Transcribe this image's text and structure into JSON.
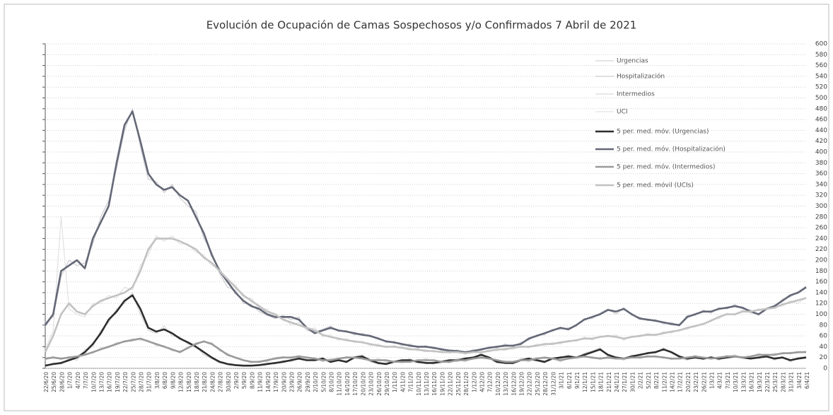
{
  "chart_data": {
    "type": "line",
    "title": "Evolución de Ocupación de Camas Sospechosos y/o Confirmados  7 Abril de 2021",
    "categories": [
      "22/6/20",
      "25/6/20",
      "28/6/20",
      "1/7/20",
      "4/7/20",
      "7/7/20",
      "10/7/20",
      "13/7/20",
      "16/7/20",
      "19/7/20",
      "22/7/20",
      "25/7/20",
      "28/7/20",
      "31/7/20",
      "3/8/20",
      "6/8/20",
      "9/8/20",
      "12/8/20",
      "15/8/20",
      "18/8/20",
      "21/8/20",
      "24/8/20",
      "27/8/20",
      "30/8/20",
      "2/9/20",
      "5/9/20",
      "8/9/20",
      "11/9/20",
      "14/9/20",
      "17/9/20",
      "20/9/20",
      "23/9/20",
      "26/9/20",
      "29/9/20",
      "2/10/20",
      "5/10/20",
      "8/10/20",
      "11/10/20",
      "14/10/20",
      "17/10/20",
      "20/10/20",
      "23/10/20",
      "26/10/20",
      "29/10/20",
      "1/11/20",
      "4/11/20",
      "7/11/20",
      "10/11/20",
      "13/11/20",
      "16/11/20",
      "19/11/20",
      "22/11/20",
      "25/11/20",
      "28/11/20",
      "1/12/20",
      "4/12/20",
      "7/12/20",
      "10/12/20",
      "13/12/20",
      "16/12/20",
      "19/12/20",
      "22/12/20",
      "25/12/20",
      "28/12/20",
      "31/12/20",
      "3/1/21",
      "6/1/21",
      "9/1/21",
      "12/1/21",
      "15/1/21",
      "18/1/21",
      "21/1/21",
      "24/1/21",
      "27/1/21",
      "30/1/21",
      "2/2/21",
      "5/2/21",
      "8/2/21",
      "11/2/21",
      "14/2/21",
      "17/2/21",
      "20/2/21",
      "23/2/21",
      "26/2/21",
      "1/3/21",
      "4/3/21",
      "7/3/21",
      "10/3/21",
      "13/3/21",
      "16/3/21",
      "19/3/21",
      "22/3/21",
      "25/3/21",
      "28/3/21",
      "31/3/21",
      "3/4/21",
      "6/4/21"
    ],
    "series": [
      {
        "name": "Urgencias",
        "color": "#d4d4d4",
        "values": [
          3,
          10,
          8,
          18,
          15,
          35,
          40,
          70,
          85,
          110,
          120,
          140,
          100,
          70,
          65,
          78,
          60,
          58,
          45,
          42,
          25,
          18,
          10,
          8,
          5,
          4,
          6,
          5,
          10,
          8,
          15,
          12,
          20,
          14,
          16,
          20,
          10,
          18,
          10,
          22,
          25,
          12,
          8,
          10,
          14,
          12,
          18,
          10,
          12,
          8,
          14,
          16,
          12,
          20,
          18,
          28,
          18,
          10,
          12,
          8,
          18,
          16,
          14,
          10,
          20,
          18,
          25,
          18,
          28,
          32,
          38,
          22,
          20,
          15,
          25,
          22,
          30,
          28,
          38,
          28,
          20,
          15,
          22,
          16,
          22,
          15,
          22,
          25,
          18,
          20,
          18,
          25,
          15,
          22,
          12,
          20,
          22
        ]
      },
      {
        "name": "Hospitalización",
        "color": "#cdcdd2",
        "values": [
          85,
          95,
          170,
          200,
          190,
          195,
          230,
          280,
          310,
          370,
          440,
          480,
          410,
          350,
          345,
          325,
          340,
          315,
          300,
          290,
          240,
          215,
          175,
          150,
          145,
          120,
          118,
          105,
          98,
          92,
          98,
          90,
          95,
          70,
          68,
          72,
          78,
          68,
          70,
          62,
          65,
          58,
          57,
          48,
          50,
          42,
          45,
          38,
          42,
          36,
          37,
          30,
          34,
          28,
          35,
          33,
          40,
          38,
          45,
          40,
          48,
          52,
          62,
          62,
          72,
          72,
          75,
          78,
          92,
          92,
          102,
          110,
          100,
          112,
          98,
          95,
          88,
          90,
          82,
          85,
          78,
          98,
          98,
          108,
          102,
          112,
          110,
          118,
          110,
          108,
          98,
          112,
          112,
          128,
          132,
          142,
          152
        ]
      },
      {
        "name": "Intermedios",
        "color": "#dadada",
        "values": [
          15,
          22,
          16,
          22,
          20,
          28,
          28,
          38,
          38,
          48,
          48,
          55,
          52,
          52,
          42,
          42,
          32,
          32,
          36,
          48,
          48,
          48,
          32,
          28,
          18,
          16,
          10,
          14,
          12,
          20,
          22,
          18,
          24,
          18,
          20,
          12,
          18,
          16,
          22,
          18,
          20,
          12,
          18,
          12,
          14,
          10,
          14,
          12,
          18,
          12,
          14,
          10,
          18,
          12,
          20,
          18,
          20,
          12,
          14,
          10,
          18,
          12,
          20,
          18,
          20,
          12,
          20,
          18,
          24,
          18,
          20,
          18,
          20,
          16,
          22,
          18,
          24,
          20,
          22,
          16,
          20,
          18,
          24,
          18,
          20,
          18,
          24,
          20,
          22,
          20,
          28,
          22,
          28,
          26,
          30,
          28,
          32
        ]
      },
      {
        "name": "UCI",
        "color": "#e2e2e2",
        "values": [
          35,
          70,
          280,
          110,
          100,
          95,
          120,
          120,
          135,
          130,
          150,
          145,
          190,
          210,
          245,
          235,
          245,
          230,
          230,
          215,
          210,
          190,
          185,
          160,
          155,
          130,
          130,
          110,
          110,
          95,
          95,
          80,
          85,
          70,
          75,
          58,
          62,
          52,
          55,
          48,
          50,
          42,
          45,
          38,
          42,
          38,
          38,
          32,
          35,
          30,
          33,
          28,
          32,
          26,
          32,
          28,
          35,
          32,
          38,
          35,
          42,
          38,
          45,
          42,
          48,
          45,
          52,
          50,
          58,
          52,
          60,
          58,
          62,
          52,
          60,
          58,
          65,
          60,
          68,
          65,
          72,
          72,
          80,
          80,
          90,
          92,
          102,
          98,
          108,
          102,
          110,
          108,
          115,
          115,
          125,
          120,
          132
        ]
      },
      {
        "name": "5 per. med. móv. (Urgencias)",
        "color": "#2e2e2e",
        "values": [
          5,
          8,
          10,
          15,
          20,
          30,
          45,
          65,
          90,
          105,
          125,
          135,
          110,
          75,
          68,
          72,
          65,
          55,
          48,
          40,
          30,
          20,
          12,
          8,
          6,
          5,
          5,
          6,
          8,
          10,
          12,
          15,
          18,
          15,
          15,
          18,
          12,
          15,
          12,
          20,
          22,
          15,
          10,
          8,
          12,
          15,
          15,
          12,
          10,
          10,
          12,
          15,
          15,
          18,
          20,
          25,
          20,
          12,
          10,
          10,
          15,
          18,
          15,
          12,
          18,
          20,
          22,
          20,
          25,
          30,
          35,
          25,
          20,
          18,
          22,
          25,
          28,
          30,
          35,
          30,
          22,
          18,
          20,
          18,
          20,
          18,
          20,
          22,
          20,
          18,
          20,
          22,
          18,
          20,
          15,
          18,
          20
        ]
      },
      {
        "name": "5 per. med. móv. (Hospitalización)",
        "color": "#646876",
        "values": [
          80,
          100,
          180,
          190,
          200,
          185,
          240,
          270,
          300,
          380,
          450,
          475,
          420,
          360,
          340,
          330,
          335,
          320,
          310,
          280,
          250,
          210,
          180,
          160,
          140,
          125,
          115,
          110,
          100,
          95,
          95,
          95,
          90,
          75,
          65,
          70,
          75,
          70,
          68,
          65,
          62,
          60,
          55,
          50,
          48,
          45,
          42,
          40,
          40,
          38,
          35,
          33,
          32,
          30,
          32,
          35,
          38,
          40,
          42,
          42,
          45,
          55,
          60,
          65,
          70,
          75,
          72,
          80,
          90,
          95,
          100,
          108,
          105,
          110,
          100,
          92,
          90,
          88,
          85,
          82,
          80,
          95,
          100,
          105,
          105,
          110,
          112,
          115,
          112,
          105,
          100,
          110,
          115,
          125,
          135,
          140,
          150
        ]
      },
      {
        "name": "5 per. med. móv. (Intermedios)",
        "color": "#9a9a9a",
        "values": [
          18,
          20,
          18,
          20,
          22,
          25,
          30,
          35,
          40,
          45,
          50,
          52,
          55,
          50,
          45,
          40,
          35,
          30,
          38,
          45,
          50,
          45,
          35,
          25,
          20,
          15,
          12,
          12,
          15,
          18,
          20,
          20,
          22,
          20,
          18,
          15,
          15,
          18,
          20,
          20,
          18,
          15,
          15,
          15,
          12,
          12,
          12,
          15,
          15,
          15,
          12,
          12,
          15,
          15,
          18,
          20,
          18,
          15,
          12,
          12,
          15,
          15,
          18,
          20,
          18,
          15,
          18,
          20,
          22,
          20,
          18,
          20,
          18,
          18,
          20,
          20,
          22,
          22,
          20,
          18,
          18,
          20,
          22,
          20,
          18,
          20,
          22,
          22,
          20,
          22,
          25,
          25,
          25,
          28,
          28,
          30,
          30
        ]
      },
      {
        "name": "5 per. med. móvil (UCIs)",
        "color": "#c2c2c2",
        "values": [
          30,
          60,
          100,
          120,
          105,
          100,
          115,
          125,
          130,
          135,
          140,
          150,
          180,
          220,
          240,
          240,
          240,
          235,
          228,
          220,
          205,
          195,
          180,
          165,
          150,
          135,
          125,
          115,
          105,
          100,
          90,
          85,
          80,
          75,
          70,
          62,
          58,
          55,
          52,
          50,
          48,
          45,
          42,
          40,
          40,
          38,
          35,
          35,
          32,
          32,
          30,
          30,
          30,
          28,
          30,
          30,
          32,
          35,
          35,
          38,
          40,
          40,
          42,
          45,
          45,
          48,
          50,
          52,
          55,
          55,
          58,
          60,
          58,
          55,
          58,
          60,
          62,
          62,
          65,
          68,
          70,
          75,
          78,
          82,
          88,
          95,
          100,
          100,
          105,
          105,
          108,
          110,
          112,
          118,
          122,
          126,
          130
        ]
      }
    ],
    "ylim": [
      0,
      600
    ],
    "yticks": [
      0,
      20,
      40,
      60,
      80,
      100,
      120,
      140,
      160,
      180,
      200,
      220,
      240,
      260,
      280,
      300,
      320,
      340,
      360,
      380,
      400,
      420,
      440,
      460,
      480,
      500,
      520,
      540,
      560,
      580,
      600
    ],
    "grid": true,
    "legend": "top-right"
  }
}
